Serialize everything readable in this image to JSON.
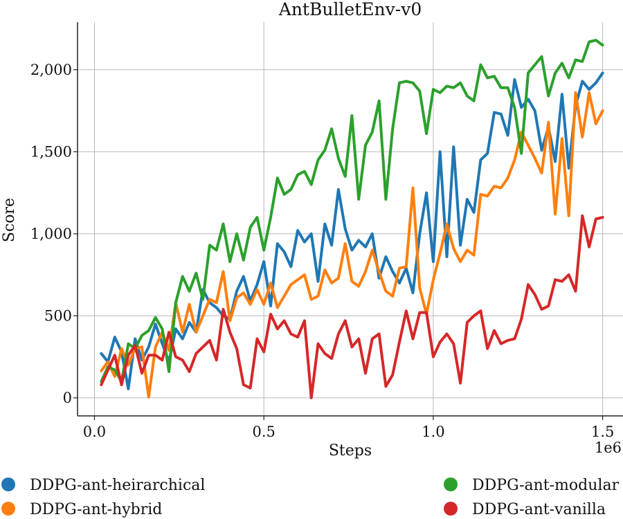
{
  "chart_data": {
    "type": "line",
    "title": "AntBulletEnv-v0",
    "xlabel": "Steps",
    "ylabel": "Score",
    "x_offset_label": "1e6",
    "xlim": [
      -0.05,
      1.56
    ],
    "ylim": [
      -110,
      2290
    ],
    "xticks": [
      0.0,
      0.5,
      1.0,
      1.5
    ],
    "xtick_labels": [
      "0.0",
      "0.5",
      "1.0",
      "1.5"
    ],
    "yticks": [
      0,
      500,
      1000,
      1500,
      2000
    ],
    "ytick_labels": [
      "0",
      "500",
      "1,000",
      "1,500",
      "2,000"
    ],
    "grid": true,
    "legend_position": "bottom",
    "x": [
      0.02,
      0.04,
      0.06,
      0.08,
      0.1,
      0.12,
      0.14,
      0.16,
      0.18,
      0.2,
      0.22,
      0.24,
      0.26,
      0.28,
      0.3,
      0.32,
      0.34,
      0.36,
      0.38,
      0.4,
      0.42,
      0.44,
      0.46,
      0.48,
      0.5,
      0.52,
      0.54,
      0.56,
      0.58,
      0.6,
      0.62,
      0.64,
      0.66,
      0.68,
      0.7,
      0.72,
      0.74,
      0.76,
      0.78,
      0.8,
      0.82,
      0.84,
      0.86,
      0.88,
      0.9,
      0.92,
      0.94,
      0.96,
      0.98,
      1.0,
      1.02,
      1.04,
      1.06,
      1.08,
      1.1,
      1.12,
      1.14,
      1.16,
      1.18,
      1.2,
      1.22,
      1.24,
      1.26,
      1.28,
      1.3,
      1.32,
      1.34,
      1.36,
      1.38,
      1.4,
      1.42,
      1.44,
      1.46,
      1.48,
      1.5
    ],
    "series": [
      {
        "name": "DDPG-ant-heirarchical",
        "color": "#1f77b4",
        "values": [
          270,
          220,
          370,
          280,
          55,
          360,
          230,
          310,
          450,
          330,
          220,
          420,
          360,
          460,
          400,
          660,
          580,
          550,
          500,
          480,
          650,
          740,
          590,
          690,
          830,
          560,
          940,
          890,
          800,
          1020,
          950,
          1000,
          710,
          1060,
          930,
          1270,
          1030,
          900,
          960,
          920,
          1000,
          730,
          860,
          770,
          700,
          790,
          640,
          1000,
          1250,
          830,
          1500,
          860,
          1530,
          930,
          1210,
          1130,
          1450,
          1490,
          1740,
          1730,
          1600,
          1940,
          1770,
          1820,
          1750,
          1510,
          1650,
          1440,
          1850,
          1400,
          1780,
          1930,
          1880,
          1920,
          1980
        ]
      },
      {
        "name": "DDPG-ant-hybrid",
        "color": "#ff7f0e",
        "values": [
          165,
          220,
          130,
          300,
          200,
          300,
          310,
          5,
          310,
          400,
          290,
          580,
          400,
          570,
          400,
          500,
          600,
          580,
          770,
          470,
          610,
          640,
          570,
          660,
          570,
          700,
          550,
          620,
          690,
          720,
          750,
          600,
          620,
          780,
          700,
          730,
          940,
          710,
          680,
          770,
          900,
          770,
          650,
          620,
          790,
          800,
          1280,
          670,
          510,
          720,
          880,
          1060,
          910,
          830,
          900,
          870,
          1240,
          1230,
          1290,
          1280,
          1340,
          1450,
          1620,
          1540,
          1460,
          1370,
          1680,
          1120,
          1580,
          1110,
          1860,
          1590,
          1860,
          1670,
          1750
        ]
      },
      {
        "name": "DDPG-ant-modular",
        "color": "#2ca02c",
        "values": [
          100,
          190,
          170,
          100,
          330,
          300,
          380,
          410,
          490,
          420,
          160,
          580,
          740,
          650,
          760,
          600,
          930,
          900,
          1060,
          830,
          1000,
          840,
          1040,
          1100,
          900,
          1100,
          1340,
          1240,
          1270,
          1360,
          1380,
          1300,
          1450,
          1510,
          1640,
          1460,
          1350,
          1720,
          1210,
          1540,
          1620,
          1810,
          1210,
          1640,
          1920,
          1930,
          1920,
          1870,
          1610,
          1880,
          1860,
          1900,
          1890,
          1920,
          1840,
          1810,
          2030,
          1950,
          1960,
          1890,
          1890,
          1770,
          1490,
          1980,
          2030,
          2080,
          1840,
          1980,
          2040,
          1950,
          2060,
          2050,
          2170,
          2180,
          2150
        ]
      },
      {
        "name": "DDPG-ant-vanilla",
        "color": "#d62728",
        "values": [
          80,
          170,
          260,
          80,
          260,
          320,
          150,
          260,
          260,
          230,
          400,
          250,
          230,
          160,
          270,
          310,
          350,
          230,
          540,
          400,
          300,
          80,
          60,
          360,
          280,
          510,
          420,
          470,
          390,
          370,
          470,
          0,
          330,
          270,
          240,
          390,
          470,
          310,
          360,
          150,
          360,
          390,
          70,
          140,
          340,
          530,
          360,
          520,
          520,
          250,
          340,
          390,
          330,
          90,
          460,
          500,
          530,
          300,
          410,
          330,
          350,
          360,
          480,
          690,
          630,
          540,
          560,
          720,
          710,
          750,
          650,
          1110,
          920,
          1090,
          1100
        ]
      }
    ]
  }
}
